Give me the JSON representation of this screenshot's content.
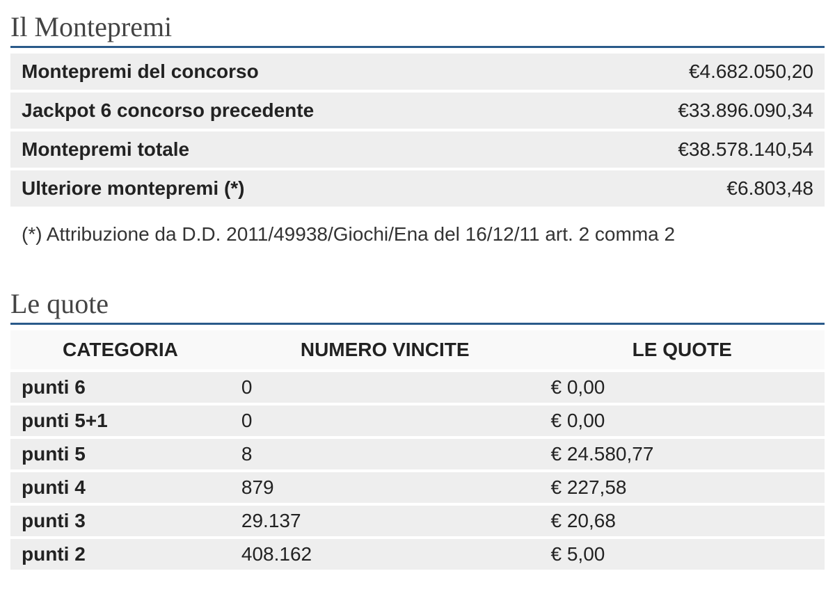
{
  "montepremi": {
    "title": "Il Montepremi",
    "rows": [
      {
        "label": "Montepremi del concorso",
        "value": "€4.682.050,20"
      },
      {
        "label": "Jackpot 6 concorso precedente",
        "value": "€33.896.090,34"
      },
      {
        "label": "Montepremi totale",
        "value": "€38.578.140,54"
      },
      {
        "label": "Ulteriore montepremi (*)",
        "value": "€6.803,48"
      }
    ],
    "footnote": "(*) Attribuzione da D.D. 2011/49938/Giochi/Ena del 16/12/11 art. 2 comma 2"
  },
  "quote": {
    "title": "Le quote",
    "columns": [
      "CATEGORIA",
      "NUMERO VINCITE",
      "LE QUOTE"
    ],
    "rows": [
      {
        "categoria": "punti 6",
        "vincite": "0",
        "quota": "€ 0,00"
      },
      {
        "categoria": "punti 5+1",
        "vincite": "0",
        "quota": "€ 0,00"
      },
      {
        "categoria": "punti 5",
        "vincite": "8",
        "quota": "€ 24.580,77"
      },
      {
        "categoria": "punti 4",
        "vincite": "879",
        "quota": "€ 227,58"
      },
      {
        "categoria": "punti 3",
        "vincite": "29.137",
        "quota": "€ 20,68"
      },
      {
        "categoria": "punti 2",
        "vincite": "408.162",
        "quota": "€ 5,00"
      }
    ]
  },
  "styling": {
    "title_color": "#444444",
    "title_border_color": "#2a5a8a",
    "row_bg": "#eeeeee",
    "header_bg": "#f9f9f9",
    "text_color": "#222222",
    "title_fontsize": 40,
    "cell_fontsize": 28,
    "footnote_fontsize": 28
  }
}
